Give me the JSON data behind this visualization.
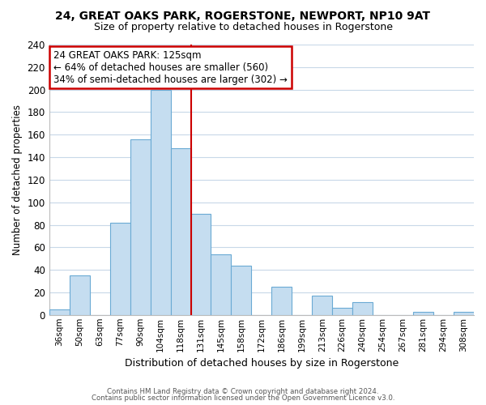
{
  "title": "24, GREAT OAKS PARK, ROGERSTONE, NEWPORT, NP10 9AT",
  "subtitle": "Size of property relative to detached houses in Rogerstone",
  "xlabel": "Distribution of detached houses by size in Rogerstone",
  "ylabel": "Number of detached properties",
  "bar_labels": [
    "36sqm",
    "50sqm",
    "63sqm",
    "77sqm",
    "90sqm",
    "104sqm",
    "118sqm",
    "131sqm",
    "145sqm",
    "158sqm",
    "172sqm",
    "186sqm",
    "199sqm",
    "213sqm",
    "226sqm",
    "240sqm",
    "254sqm",
    "267sqm",
    "281sqm",
    "294sqm",
    "308sqm"
  ],
  "bar_values": [
    5,
    35,
    0,
    82,
    156,
    200,
    148,
    90,
    54,
    44,
    0,
    25,
    0,
    17,
    6,
    11,
    0,
    0,
    3,
    0,
    3
  ],
  "bar_color": "#c5ddf0",
  "bar_edge_color": "#6aaad4",
  "vline_x_index": 6,
  "vline_color": "#cc0000",
  "annotation_title": "24 GREAT OAKS PARK: 125sqm",
  "annotation_line1": "← 64% of detached houses are smaller (560)",
  "annotation_line2": "34% of semi-detached houses are larger (302) →",
  "annotation_box_color": "#ffffff",
  "annotation_box_edge": "#cc0000",
  "footer1": "Contains HM Land Registry data © Crown copyright and database right 2024.",
  "footer2": "Contains public sector information licensed under the Open Government Licence v3.0.",
  "ylim": [
    0,
    240
  ],
  "yticks": [
    0,
    20,
    40,
    60,
    80,
    100,
    120,
    140,
    160,
    180,
    200,
    220,
    240
  ],
  "background_color": "#ffffff",
  "grid_color": "#c8d8e8"
}
